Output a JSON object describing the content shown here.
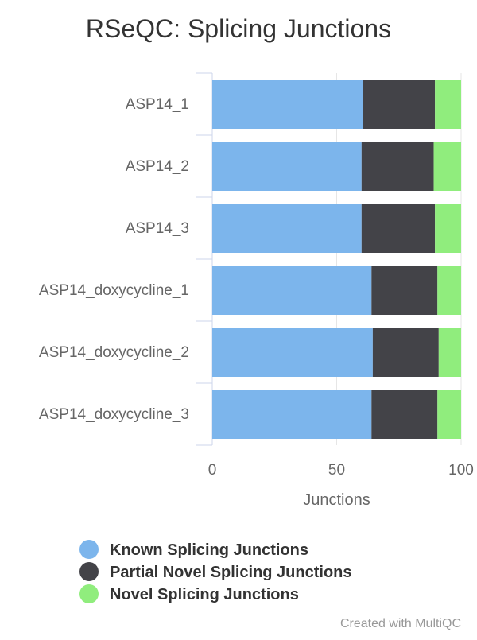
{
  "chart_data": {
    "type": "bar",
    "orientation": "horizontal",
    "stacked": true,
    "title": "RSeQC: Splicing Junctions",
    "xlabel": "Junctions",
    "ylabel": "",
    "xlim": [
      0,
      100
    ],
    "x_ticks": [
      "0",
      "50",
      "100"
    ],
    "grid": true,
    "legend_position": "bottom",
    "categories": [
      "ASP14_1",
      "ASP14_2",
      "ASP14_3",
      "ASP14_doxycycline_1",
      "ASP14_doxycycline_2",
      "ASP14_doxycycline_3"
    ],
    "series": [
      {
        "name": "Known Splicing Junctions",
        "color": "#7cb5ec",
        "values": [
          60.5,
          60.0,
          60.0,
          64.0,
          64.5,
          64.0
        ]
      },
      {
        "name": "Partial Novel Splicing Junctions",
        "color": "#434348",
        "values": [
          29.0,
          29.0,
          29.5,
          26.5,
          26.5,
          26.5
        ]
      },
      {
        "name": "Novel Splicing Junctions",
        "color": "#90ed7d",
        "values": [
          10.5,
          11.0,
          10.5,
          9.5,
          9.0,
          9.5
        ]
      }
    ]
  },
  "credit": "Created with MultiQC"
}
